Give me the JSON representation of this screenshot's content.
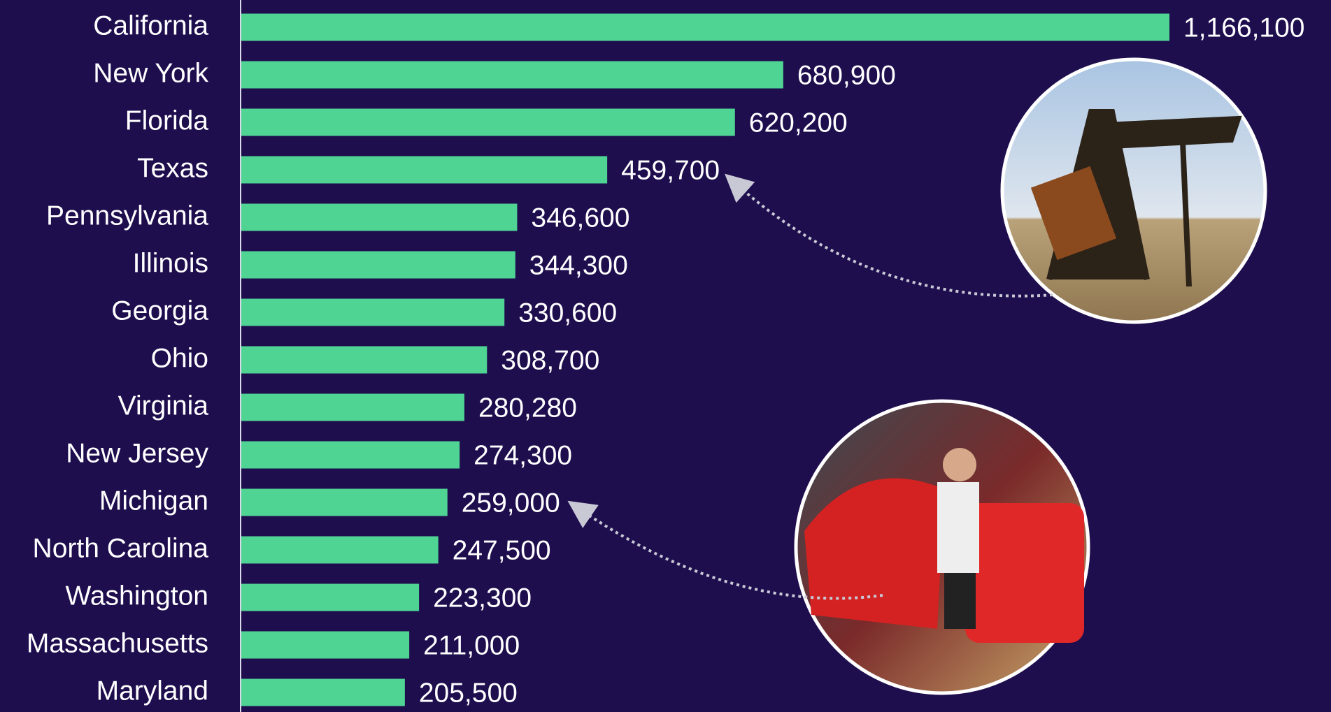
{
  "chart_data": {
    "type": "bar",
    "categories": [
      "California",
      "New York",
      "Florida",
      "Texas",
      "Pennsylvania",
      "Illinois",
      "Georgia",
      "Ohio",
      "Virginia",
      "New Jersey",
      "Michigan",
      "North Carolina",
      "Washington",
      "Massachusetts",
      "Maryland"
    ],
    "values": [
      1166100,
      680900,
      620200,
      459700,
      346600,
      344300,
      330600,
      308700,
      280280,
      274300,
      259000,
      247500,
      223300,
      211000,
      205500
    ],
    "value_labels": [
      "1,166,100",
      "680,900",
      "620,200",
      "459,700",
      "346,600",
      "344,300",
      "330,600",
      "308,700",
      "280,280",
      "274,300",
      "259,000",
      "247,500",
      "223,300",
      "211,000",
      "205,500"
    ],
    "color": "#4fd494"
  }
}
